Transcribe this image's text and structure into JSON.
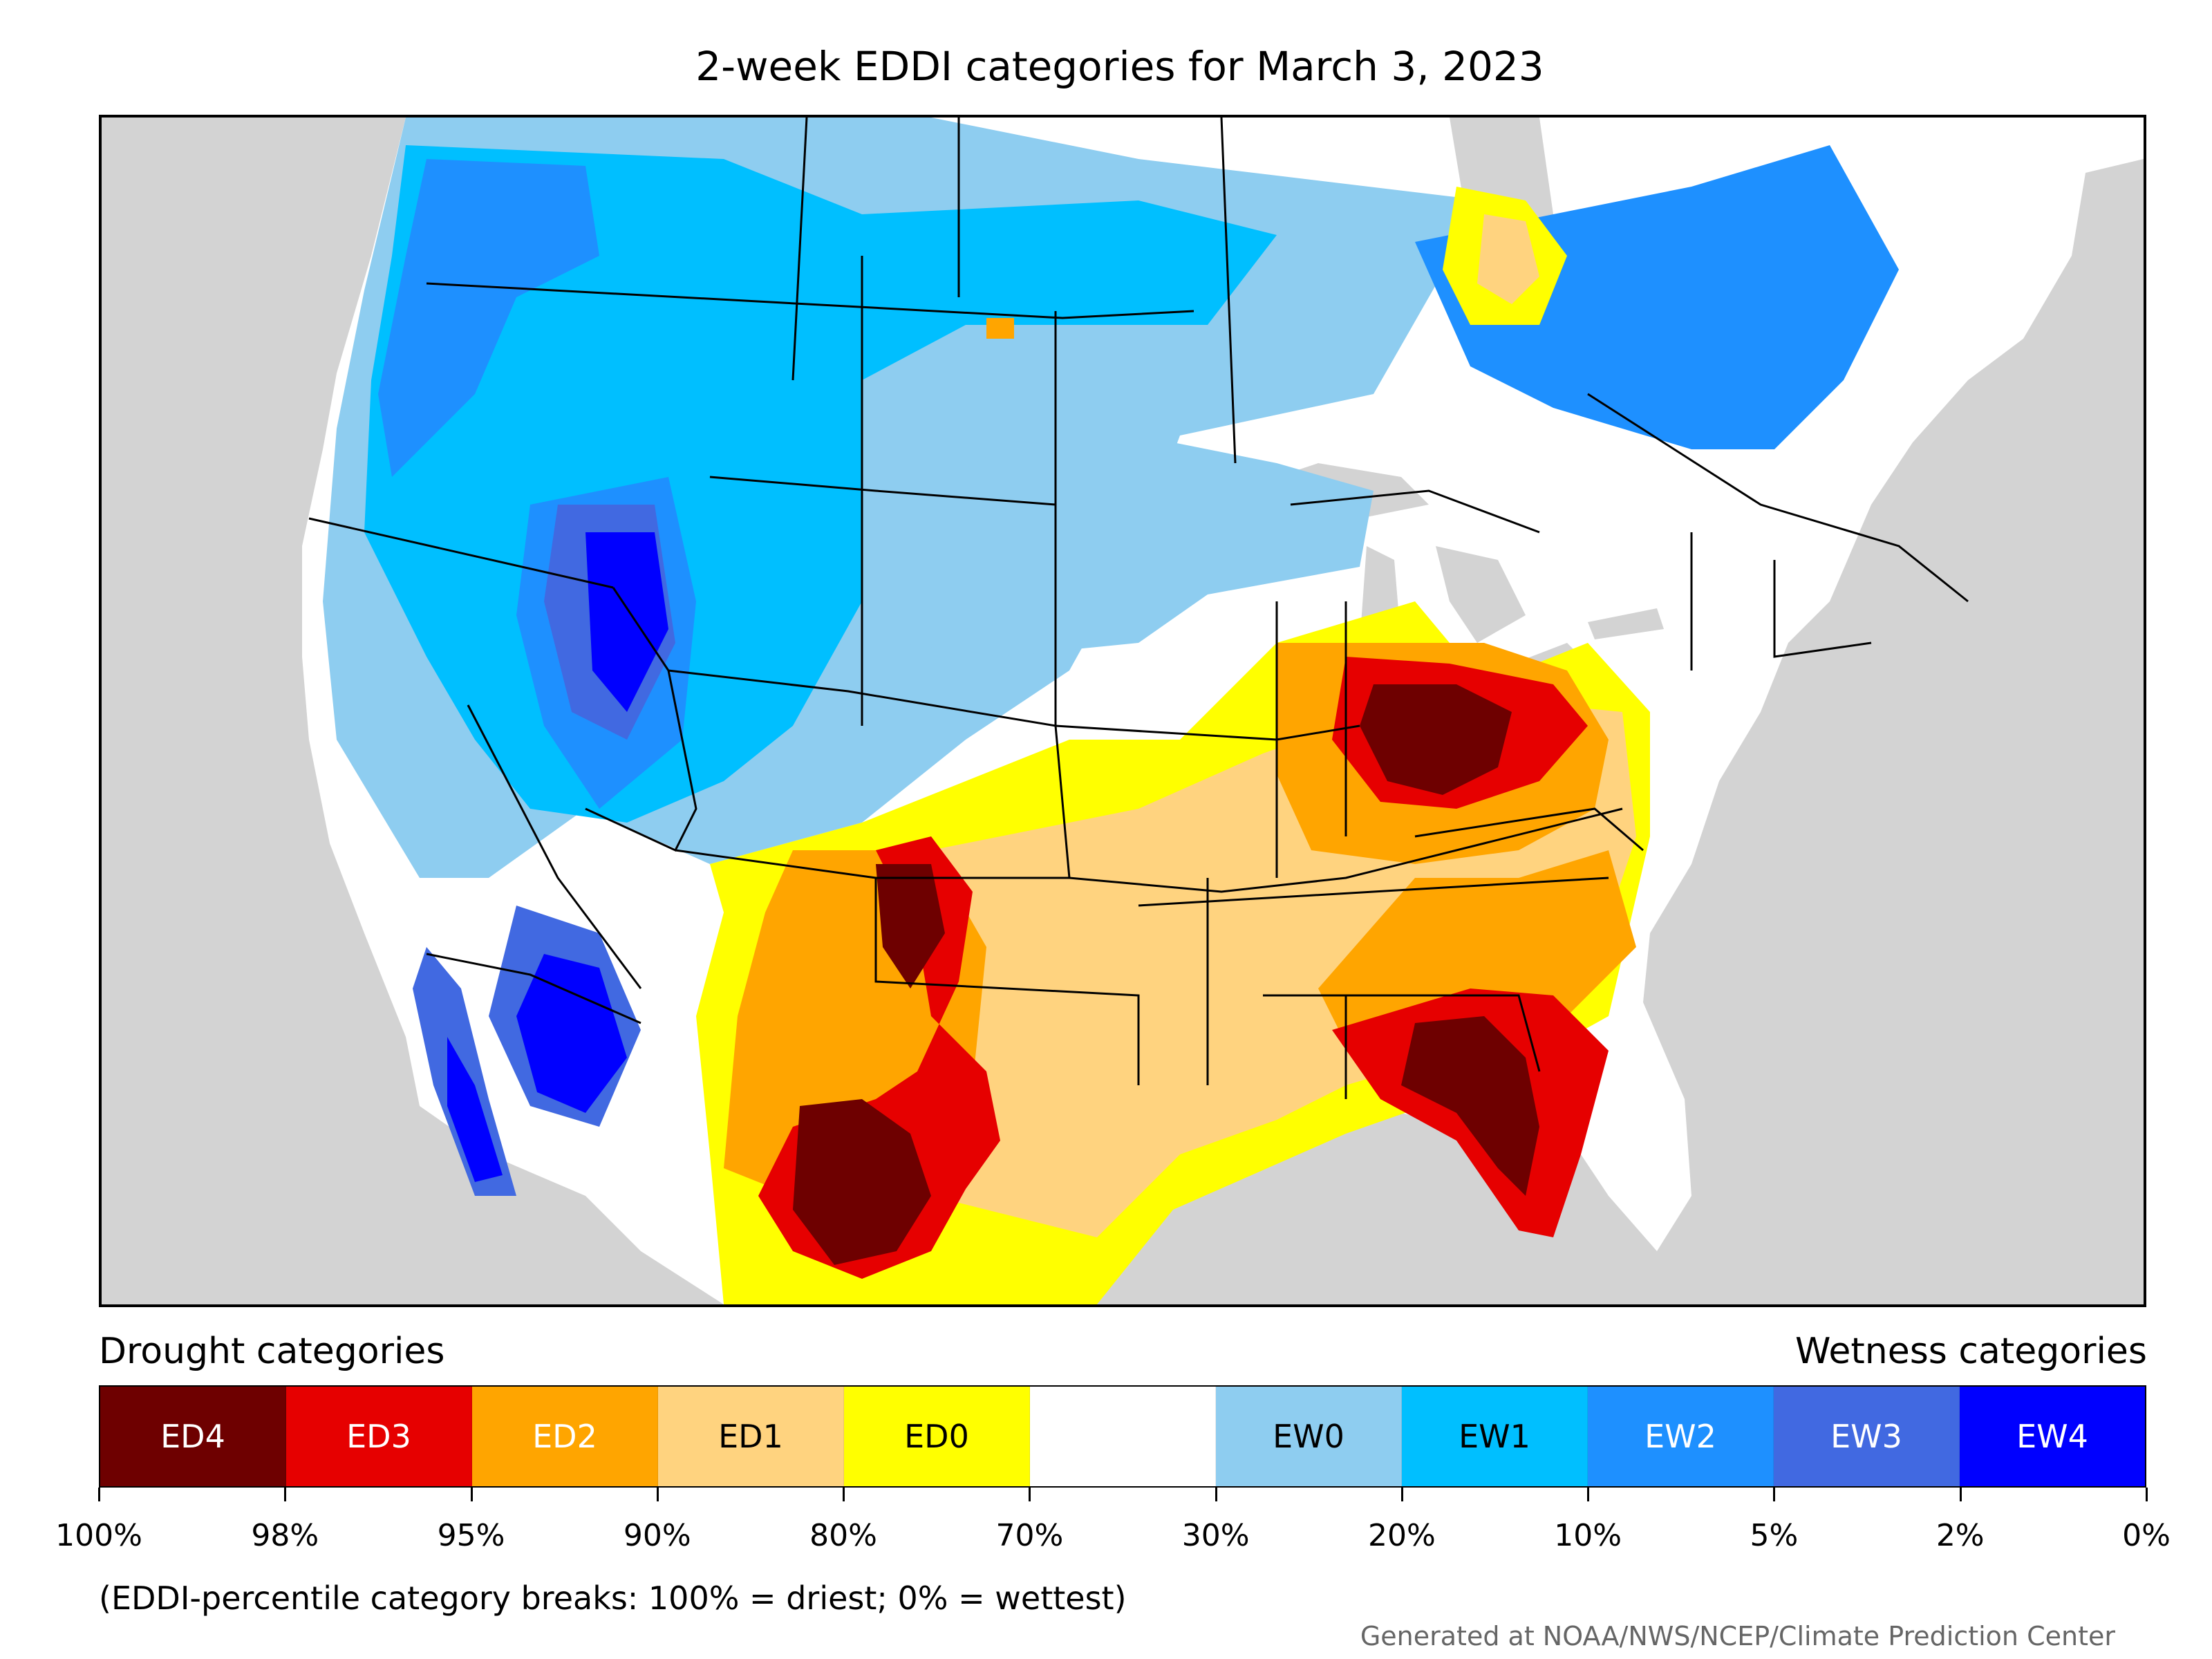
{
  "title": "2-week EDDI categories for March 3, 2023",
  "legend": {
    "drought_label": "Drought categories",
    "wetness_label": "Wetness categories",
    "categories": [
      {
        "label": "ED4",
        "color": "#6e0000",
        "text_color": "#ffffff"
      },
      {
        "label": "ED3",
        "color": "#e60000",
        "text_color": "#ffffff"
      },
      {
        "label": "ED2",
        "color": "#ffa500",
        "text_color": "#ffffff"
      },
      {
        "label": "ED1",
        "color": "#ffd37f",
        "text_color": "#000000"
      },
      {
        "label": "ED0",
        "color": "#ffff00",
        "text_color": "#000000"
      },
      {
        "label": "",
        "color": "#ffffff",
        "text_color": "#000000"
      },
      {
        "label": "EW0",
        "color": "#8ecdf0",
        "text_color": "#000000"
      },
      {
        "label": "EW1",
        "color": "#00bfff",
        "text_color": "#000000"
      },
      {
        "label": "EW2",
        "color": "#1e90ff",
        "text_color": "#ffffff"
      },
      {
        "label": "EW3",
        "color": "#4169e1",
        "text_color": "#ffffff"
      },
      {
        "label": "EW4",
        "color": "#0000ff",
        "text_color": "#ffffff"
      }
    ],
    "tick_labels": [
      "100%",
      "98%",
      "95%",
      "90%",
      "80%",
      "70%",
      "30%",
      "20%",
      "10%",
      "5%",
      "2%",
      "0%"
    ]
  },
  "note": "(EDDI-percentile category breaks: 100% = driest; 0% = wettest)",
  "credit": "Generated at NOAA/NWS/NCEP/Climate Prediction Center",
  "map": {
    "ocean_color": "#d3d3d3",
    "land_color": "#ffffff"
  }
}
